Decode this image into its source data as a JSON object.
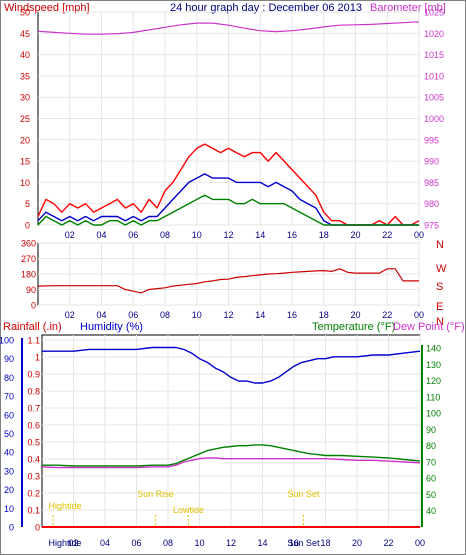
{
  "chart_data": [
    {
      "id": "top",
      "type": "line",
      "title": "24 hour graph day : December 06 2013",
      "left_axis": {
        "label": "Windspeed [mph]",
        "ylim": [
          0,
          50
        ],
        "ticks": [
          "0",
          "5",
          "10",
          "15",
          "20",
          "25",
          "30",
          "35",
          "40",
          "45",
          "50"
        ]
      },
      "right_axis": {
        "label": "Barometer [mb]",
        "ylim": [
          975,
          1025
        ],
        "ticks": [
          "975",
          "980",
          "985",
          "990",
          "995",
          "1000",
          "1005",
          "1010",
          "1015",
          "1020",
          "1025"
        ]
      },
      "x_ticks": [
        "02",
        "04",
        "06",
        "08",
        "10",
        "12",
        "14",
        "16",
        "18",
        "20",
        "22",
        "00"
      ],
      "xlim": [
        0,
        24
      ],
      "series": [
        {
          "color": "#ff0000",
          "axis": "left",
          "x": [
            0,
            0.5,
            1,
            1.5,
            2,
            2.5,
            3,
            3.5,
            4,
            4.5,
            5,
            5.5,
            6,
            6.5,
            7,
            7.5,
            8,
            8.5,
            9,
            9.5,
            10,
            10.5,
            11,
            11.5,
            12,
            12.5,
            13,
            13.5,
            14,
            14.5,
            15,
            15.5,
            16,
            16.5,
            17,
            17.5,
            18,
            18.5,
            19,
            19.5,
            20,
            20.5,
            21,
            21.5,
            22,
            22.5,
            23,
            23.5,
            24
          ],
          "y": [
            2,
            6,
            5,
            3,
            5,
            4,
            5,
            3,
            4,
            5,
            6,
            4,
            5,
            3,
            6,
            4,
            8,
            10,
            13,
            16,
            18,
            19,
            18,
            17,
            18,
            17,
            16,
            17,
            17,
            15,
            17,
            15,
            13,
            11,
            9,
            7,
            3,
            1,
            1,
            0,
            0,
            0,
            0,
            1,
            0,
            2,
            0,
            0,
            1
          ]
        },
        {
          "color": "#0000cc",
          "axis": "left",
          "x": [
            0,
            0.5,
            1,
            1.5,
            2,
            2.5,
            3,
            3.5,
            4,
            4.5,
            5,
            5.5,
            6,
            6.5,
            7,
            7.5,
            8,
            8.5,
            9,
            9.5,
            10,
            10.5,
            11,
            11.5,
            12,
            12.5,
            13,
            13.5,
            14,
            14.5,
            15,
            15.5,
            16,
            16.5,
            17,
            17.5,
            18,
            18.5,
            19,
            19.5,
            20,
            20.5,
            21,
            21.5,
            22,
            22.5,
            23,
            23.5,
            24
          ],
          "y": [
            1,
            3,
            2,
            1,
            2,
            1,
            2,
            1,
            2,
            2,
            2,
            1,
            2,
            1,
            2,
            2,
            4,
            6,
            8,
            10,
            11,
            12,
            11,
            11,
            11,
            10,
            10,
            10,
            10,
            9,
            10,
            9,
            8,
            6,
            5,
            4,
            1,
            0,
            0,
            0,
            0,
            0,
            0,
            0,
            0,
            0,
            0,
            0,
            0
          ]
        },
        {
          "color": "#008000",
          "axis": "left",
          "x": [
            0,
            0.5,
            1,
            1.5,
            2,
            2.5,
            3,
            3.5,
            4,
            4.5,
            5,
            5.5,
            6,
            6.5,
            7,
            7.5,
            8,
            8.5,
            9,
            9.5,
            10,
            10.5,
            11,
            11.5,
            12,
            12.5,
            13,
            13.5,
            14,
            14.5,
            15,
            15.5,
            16,
            16.5,
            17,
            17.5,
            18,
            18.5,
            19,
            19.5,
            20,
            20.5,
            21,
            21.5,
            22,
            22.5,
            23,
            23.5,
            24
          ],
          "y": [
            0,
            2,
            1,
            0,
            1,
            0,
            1,
            0,
            0,
            1,
            1,
            0,
            1,
            0,
            1,
            1,
            2,
            3,
            4,
            5,
            6,
            7,
            6,
            6,
            6,
            5,
            5,
            6,
            5,
            5,
            5,
            5,
            4,
            3,
            2,
            1,
            0,
            0,
            0,
            0,
            0,
            0,
            0,
            0,
            0,
            0,
            0,
            0,
            0
          ]
        },
        {
          "color": "#cc33cc",
          "axis": "right",
          "x": [
            0,
            1,
            2,
            3,
            4,
            5,
            6,
            7,
            8,
            9,
            10,
            11,
            12,
            13,
            14,
            15,
            16,
            17,
            18,
            19,
            20,
            21,
            22,
            23,
            24
          ],
          "y": [
            1020.5,
            1020.2,
            1020,
            1019.8,
            1019.8,
            1019.9,
            1020.2,
            1020.8,
            1021.4,
            1022,
            1022.4,
            1022.4,
            1021.9,
            1021.2,
            1020.6,
            1020.4,
            1020.6,
            1021,
            1021.5,
            1021.9,
            1022,
            1022.1,
            1022.3,
            1022.5,
            1022.7
          ]
        }
      ]
    },
    {
      "id": "dir",
      "type": "line",
      "left_axis": {
        "ylim": [
          0,
          360
        ],
        "ticks": [
          "0",
          "90",
          "180",
          "270",
          "360"
        ]
      },
      "right_labels": [
        "N",
        "W",
        "S",
        "E",
        "N"
      ],
      "x_ticks": [
        "02",
        "04",
        "06",
        "08",
        "10",
        "12",
        "14",
        "16",
        "18",
        "20",
        "22",
        "00"
      ],
      "xlim": [
        0,
        24
      ],
      "series": [
        {
          "color": "#cc0000",
          "x": [
            0,
            1,
            2,
            3,
            4,
            5,
            5.5,
            6,
            6.5,
            7,
            7.5,
            8,
            8.5,
            9,
            9.5,
            10,
            10.5,
            11,
            11.5,
            12,
            12.5,
            13,
            13.5,
            14,
            14.5,
            15,
            15.5,
            16,
            16.5,
            17,
            17.5,
            18,
            18.5,
            19,
            19.5,
            20,
            20.5,
            21,
            21.5,
            22,
            22.5,
            23,
            23.5,
            24
          ],
          "y": [
            110,
            112,
            112,
            112,
            112,
            112,
            90,
            80,
            70,
            90,
            95,
            100,
            110,
            115,
            120,
            125,
            135,
            140,
            148,
            150,
            160,
            165,
            170,
            175,
            180,
            182,
            185,
            190,
            192,
            195,
            198,
            200,
            195,
            210,
            190,
            185,
            185,
            185,
            185,
            210,
            210,
            140,
            140,
            140
          ]
        }
      ]
    },
    {
      "id": "bottom",
      "type": "line",
      "left_labels": [
        "Rainfall (.in)",
        "Humidity (%)"
      ],
      "right_labels": [
        "Temperature (°F)",
        "Dew Point (°F)"
      ],
      "left_axis": {
        "ylim": [
          0,
          1.1
        ],
        "ticks": [
          "0",
          "0.1",
          "0.2",
          "0.3",
          "0.4",
          "0.5",
          "0.6",
          "0.7",
          "0.8",
          "0.9",
          "1",
          "1.1"
        ]
      },
      "humidity_axis": {
        "ylim": [
          0,
          100
        ],
        "ticks": [
          "0",
          "10",
          "20",
          "30",
          "40",
          "50",
          "60",
          "70",
          "80",
          "90",
          "100"
        ]
      },
      "right_axis": {
        "ylim": [
          30,
          145
        ],
        "ticks": [
          "40",
          "50",
          "60",
          "70",
          "80",
          "90",
          "100",
          "110",
          "120",
          "130",
          "140"
        ]
      },
      "x_ticks": [
        "02",
        "04",
        "06",
        "08",
        "10",
        "12",
        "14",
        "16",
        "18",
        "20",
        "22",
        "00"
      ],
      "xlim": [
        0,
        24
      ],
      "events": [
        {
          "label": "Hightide",
          "x": 0.7
        },
        {
          "label": "Sun Rise",
          "x": 7.2
        },
        {
          "label": "Lowtide",
          "x": 9.3
        },
        {
          "label": "Sun Set",
          "x": 16.6
        }
      ],
      "bottom_labels": [
        {
          "label": "Hightide",
          "x": 0.7
        },
        {
          "label": "Sun Set",
          "x": 16.6
        }
      ],
      "series": [
        {
          "color": "#0000cc",
          "axis": "humidity",
          "x": [
            0,
            1,
            2,
            3,
            4,
            5,
            6,
            7,
            8,
            8.5,
            9,
            9.5,
            10,
            10.5,
            11,
            11.5,
            12,
            12.5,
            13,
            13.5,
            14,
            14.5,
            15,
            15.5,
            16,
            16.5,
            17,
            17.5,
            18,
            18.5,
            19,
            20,
            21,
            22,
            23,
            24
          ],
          "y": [
            94,
            94,
            94,
            95,
            95,
            95,
            95,
            96,
            96,
            96,
            95,
            93,
            90,
            88,
            85,
            83,
            80,
            78,
            78,
            77,
            77,
            78,
            80,
            83,
            86,
            88,
            89,
            90,
            90,
            91,
            91,
            91,
            92,
            92,
            93,
            94
          ]
        },
        {
          "color": "#008000",
          "axis": "right",
          "x": [
            0,
            1,
            2,
            3,
            4,
            5,
            6,
            7,
            8,
            8.5,
            9,
            9.5,
            10,
            10.5,
            11,
            11.5,
            12,
            12.5,
            13,
            13.5,
            14,
            14.5,
            15,
            15.5,
            16,
            16.5,
            17,
            17.5,
            18,
            19,
            20,
            21,
            22,
            23,
            24
          ],
          "y": [
            68,
            68,
            67.5,
            67.5,
            67.5,
            67.5,
            67.5,
            68,
            68,
            69,
            71,
            73,
            75,
            77,
            78,
            79,
            79.5,
            80,
            80,
            80.5,
            80.5,
            80,
            79,
            78,
            77,
            76,
            75,
            74.5,
            74,
            74,
            73.5,
            73,
            72.5,
            71.5,
            70.5
          ]
        },
        {
          "color": "#cc33cc",
          "axis": "right",
          "x": [
            0,
            1,
            2,
            3,
            4,
            5,
            6,
            7,
            8,
            8.5,
            9,
            9.5,
            10,
            10.5,
            11,
            11.5,
            12,
            12.5,
            13,
            13.5,
            14,
            14.5,
            15,
            15.5,
            16,
            17,
            18,
            19,
            20,
            21,
            22,
            23,
            24
          ],
          "y": [
            67,
            66.5,
            66.5,
            66.5,
            66.5,
            66.5,
            66.5,
            67,
            67,
            68,
            70,
            71,
            72,
            72.5,
            72.5,
            72,
            72,
            72,
            72,
            72,
            72,
            72,
            72,
            72,
            72,
            72,
            72,
            71.5,
            71,
            71,
            70.5,
            70,
            69.5
          ]
        },
        {
          "color": "#ff0000",
          "axis": "left",
          "x": [
            0,
            24
          ],
          "y": [
            0,
            0
          ]
        }
      ]
    }
  ]
}
